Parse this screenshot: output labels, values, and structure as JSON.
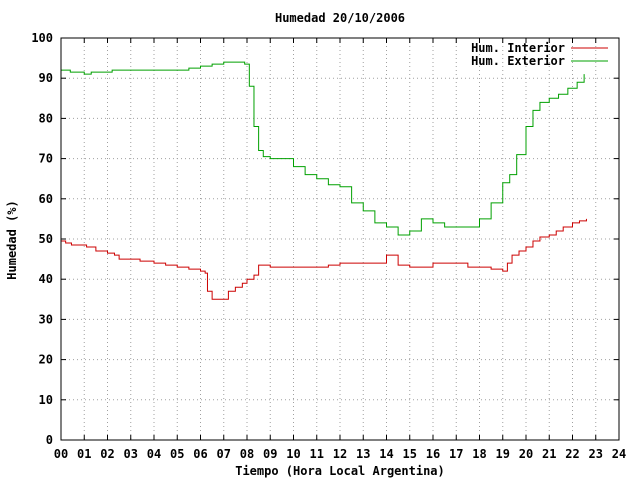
{
  "chart_data": {
    "type": "line",
    "title": "Humedad 20/10/2006",
    "xlabel": "Tiempo (Hora Local Argentina)",
    "ylabel": "Humedad (%)",
    "xlim": [
      0,
      24
    ],
    "ylim": [
      0,
      100
    ],
    "x_ticks": [
      "00",
      "01",
      "02",
      "03",
      "04",
      "05",
      "06",
      "07",
      "08",
      "09",
      "10",
      "11",
      "12",
      "13",
      "14",
      "15",
      "16",
      "17",
      "18",
      "19",
      "20",
      "21",
      "22",
      "23",
      "24"
    ],
    "y_ticks": [
      "0",
      "10",
      "20",
      "30",
      "40",
      "50",
      "60",
      "70",
      "80",
      "90",
      "100"
    ],
    "grid": true,
    "legend_position": "top-right",
    "series": [
      {
        "name": "Hum. Interior",
        "color": "#cc0000",
        "x": [
          0,
          0.2,
          0.45,
          0.8,
          1.1,
          1.5,
          2.0,
          2.3,
          2.5,
          3.0,
          3.4,
          4.0,
          4.5,
          5.0,
          5.5,
          6.0,
          6.2,
          6.3,
          6.5,
          7.0,
          7.2,
          7.5,
          7.8,
          8.0,
          8.3,
          8.5,
          9.0,
          10.0,
          11.0,
          11.5,
          12.0,
          13.0,
          13.5,
          14.0,
          14.5,
          15.0,
          15.5,
          16.0,
          17.0,
          17.5,
          18.0,
          18.5,
          19.0,
          19.2,
          19.4,
          19.7,
          20.0,
          20.3,
          20.6,
          21.0,
          21.3,
          21.6,
          22.0,
          22.3,
          22.6
        ],
        "values": [
          49.5,
          49,
          48.5,
          48.5,
          48,
          47,
          46.5,
          46,
          45,
          45,
          44.5,
          44,
          43.5,
          43,
          42.5,
          42,
          41.5,
          37,
          35,
          35,
          37,
          38,
          39,
          40,
          41,
          43.5,
          43,
          43,
          43,
          43.5,
          44,
          44,
          44,
          46,
          43.5,
          43,
          43,
          44,
          44,
          43,
          43,
          42.5,
          42,
          44,
          46,
          47,
          48,
          49.5,
          50.5,
          51,
          52,
          53,
          54,
          54.5,
          55
        ]
      },
      {
        "name": "Hum. Exterior",
        "color": "#00a000",
        "x": [
          0,
          0.4,
          1.0,
          1.3,
          2.2,
          3.0,
          4.0,
          5.0,
          5.5,
          6.0,
          6.5,
          7.0,
          7.5,
          7.9,
          8.1,
          8.3,
          8.5,
          8.7,
          9.0,
          9.5,
          10.0,
          10.5,
          11.0,
          11.5,
          12.0,
          12.5,
          13.0,
          13.5,
          14.0,
          14.5,
          15.0,
          15.5,
          16.0,
          16.5,
          17.0,
          17.5,
          18.0,
          18.5,
          19.0,
          19.3,
          19.6,
          20.0,
          20.3,
          20.6,
          21.0,
          21.4,
          21.8,
          22.2,
          22.5
        ],
        "values": [
          92,
          91.5,
          91,
          91.5,
          92,
          92,
          92,
          92,
          92.5,
          93,
          93.5,
          94,
          94,
          93.5,
          88,
          78,
          72,
          70.5,
          70,
          70,
          68,
          66,
          65,
          63.5,
          63,
          59,
          57,
          54,
          53,
          51,
          52,
          55,
          54,
          53,
          53,
          53,
          55,
          59,
          64,
          66,
          71,
          78,
          82,
          84,
          85,
          86,
          87.5,
          89,
          91
        ]
      }
    ]
  }
}
